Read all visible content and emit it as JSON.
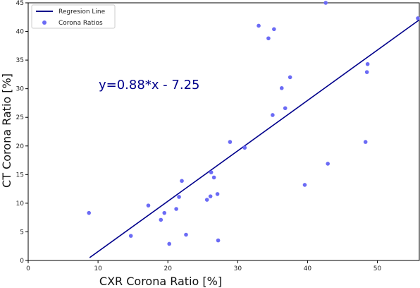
{
  "chart_data": {
    "type": "scatter",
    "xlabel": "CXR Corona Ratio [%]",
    "ylabel": "CT Corona Ratio [%]",
    "xlim": [
      0,
      56
    ],
    "ylim": [
      0,
      45
    ],
    "xticks": [
      0,
      10,
      20,
      30,
      40,
      50
    ],
    "yticks": [
      0,
      5,
      10,
      15,
      20,
      25,
      30,
      35,
      40,
      45
    ],
    "grid": false,
    "legend_position": "top-left",
    "annotation": "y=0.88*x - 7.25",
    "colors": {
      "line": "#00008b",
      "points": "#6b6bf5",
      "annotation": "#00008b"
    },
    "series": [
      {
        "name": "Regresion Line",
        "kind": "line",
        "slope": 0.88,
        "intercept": -7.25,
        "x_range": [
          8.8,
          56
        ]
      },
      {
        "name": "Corona Ratios",
        "kind": "scatter",
        "points": [
          [
            8.7,
            8.3
          ],
          [
            14.7,
            4.3
          ],
          [
            17.2,
            9.6
          ],
          [
            19.0,
            7.1
          ],
          [
            19.5,
            8.3
          ],
          [
            20.2,
            2.9
          ],
          [
            21.2,
            9.0
          ],
          [
            21.6,
            11.1
          ],
          [
            22.0,
            13.9
          ],
          [
            22.6,
            4.5
          ],
          [
            25.6,
            10.6
          ],
          [
            26.1,
            11.2
          ],
          [
            26.2,
            15.4
          ],
          [
            26.6,
            14.5
          ],
          [
            27.1,
            11.6
          ],
          [
            27.2,
            3.5
          ],
          [
            28.9,
            20.7
          ],
          [
            31.0,
            19.7
          ],
          [
            33.0,
            41.0
          ],
          [
            34.4,
            38.8
          ],
          [
            35.0,
            25.4
          ],
          [
            35.2,
            40.4
          ],
          [
            36.3,
            30.1
          ],
          [
            36.8,
            26.6
          ],
          [
            37.5,
            32.0
          ],
          [
            39.6,
            13.2
          ],
          [
            42.6,
            45.0
          ],
          [
            42.9,
            16.9
          ],
          [
            48.3,
            20.7
          ],
          [
            48.5,
            32.9
          ],
          [
            48.6,
            34.3
          ],
          [
            55.8,
            42.3
          ]
        ]
      }
    ]
  }
}
